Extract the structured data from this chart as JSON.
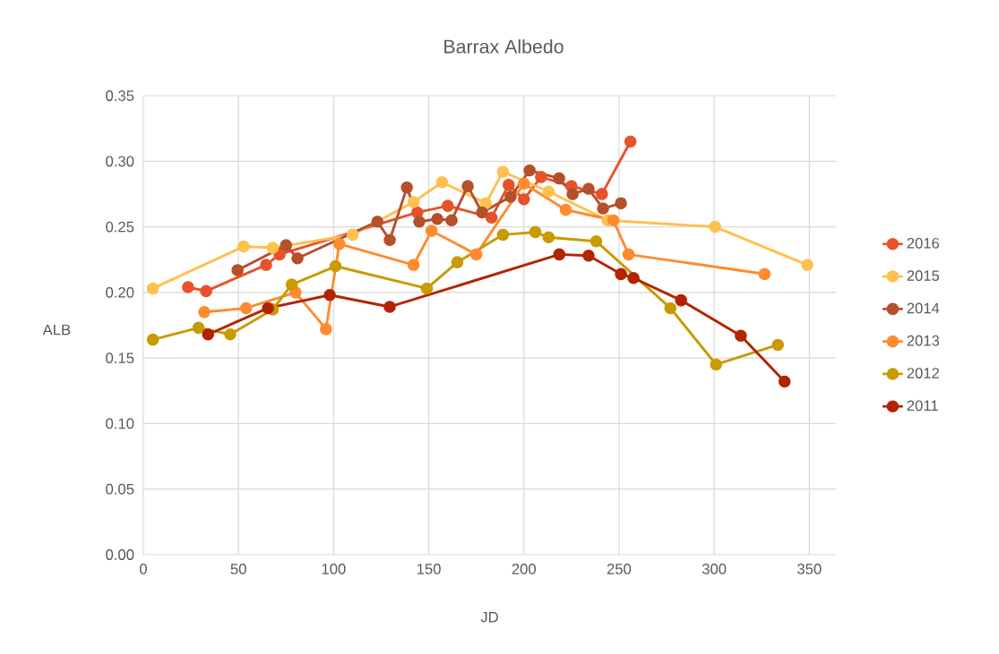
{
  "chart_data": {
    "type": "line",
    "title": "Barrax Albedo",
    "xlabel": "JD",
    "ylabel": "ALB",
    "xlim": [
      0,
      364
    ],
    "xticks": [
      0,
      50,
      100,
      150,
      200,
      250,
      300,
      350
    ],
    "ylim": [
      0,
      0.35
    ],
    "yticks": [
      {
        "value": 0,
        "label": "0.00"
      },
      {
        "value": 0.05,
        "label": "0.05"
      },
      {
        "value": 0.1,
        "label": "0.10"
      },
      {
        "value": 0.15,
        "label": "0.15"
      },
      {
        "value": 0.2,
        "label": "0.20"
      },
      {
        "value": 0.25,
        "label": "0.25"
      },
      {
        "value": 0.3,
        "label": "0.30"
      },
      {
        "value": 0.35,
        "label": "0.35"
      }
    ],
    "grid": true,
    "legend": "right",
    "marker": "circle",
    "line_style": "solid",
    "series": [
      {
        "name": "2016",
        "color": "#e8522a",
        "x": [
          23.5,
          33,
          64.5,
          71.6,
          144,
          160,
          183,
          192,
          200,
          209,
          225,
          241,
          256
        ],
        "values": [
          0.204,
          0.201,
          0.221,
          0.229,
          0.261,
          0.266,
          0.257,
          0.282,
          0.271,
          0.288,
          0.281,
          0.275,
          0.315
        ]
      },
      {
        "name": "2015",
        "color": "#ffc04d",
        "x": [
          5,
          52.7,
          68,
          110,
          142,
          157,
          180,
          189,
          213,
          244,
          300.5,
          349
        ],
        "values": [
          0.203,
          0.235,
          0.234,
          0.244,
          0.269,
          0.284,
          0.268,
          0.292,
          0.277,
          0.255,
          0.25,
          0.221
        ]
      },
      {
        "name": "2014",
        "color": "#b5502b",
        "x": [
          49.5,
          75,
          81,
          123,
          129.5,
          138.5,
          145,
          154.5,
          162,
          170.5,
          178,
          193,
          203,
          218.5,
          225.6,
          234,
          241.6,
          251
        ],
        "values": [
          0.217,
          0.236,
          0.226,
          0.254,
          0.24,
          0.28,
          0.254,
          0.256,
          0.255,
          0.281,
          0.261,
          0.273,
          0.293,
          0.287,
          0.275,
          0.279,
          0.264,
          0.268
        ]
      },
      {
        "name": "2013",
        "color": "#ff8b2e",
        "x": [
          32,
          54,
          80,
          96,
          103,
          142,
          151.5,
          175,
          200,
          222,
          247,
          255,
          326.5
        ],
        "values": [
          0.185,
          0.188,
          0.2,
          0.172,
          0.237,
          0.221,
          0.247,
          0.229,
          0.283,
          0.263,
          0.255,
          0.229,
          0.214
        ]
      },
      {
        "name": "2012",
        "color": "#c89b00",
        "x": [
          5,
          29,
          45.7,
          68,
          78,
          101,
          149,
          165,
          189,
          206,
          213,
          238,
          277,
          301,
          333.5
        ],
        "values": [
          0.164,
          0.173,
          0.168,
          0.187,
          0.206,
          0.22,
          0.203,
          0.223,
          0.244,
          0.246,
          0.242,
          0.239,
          0.188,
          0.145,
          0.16
        ]
      },
      {
        "name": "2011",
        "color": "#b32400",
        "x": [
          34,
          65.5,
          98,
          129.5,
          218.6,
          234,
          251,
          257.6,
          282.6,
          314,
          337
        ],
        "values": [
          0.168,
          0.188,
          0.198,
          0.189,
          0.229,
          0.228,
          0.214,
          0.211,
          0.194,
          0.167,
          0.132
        ]
      }
    ]
  }
}
